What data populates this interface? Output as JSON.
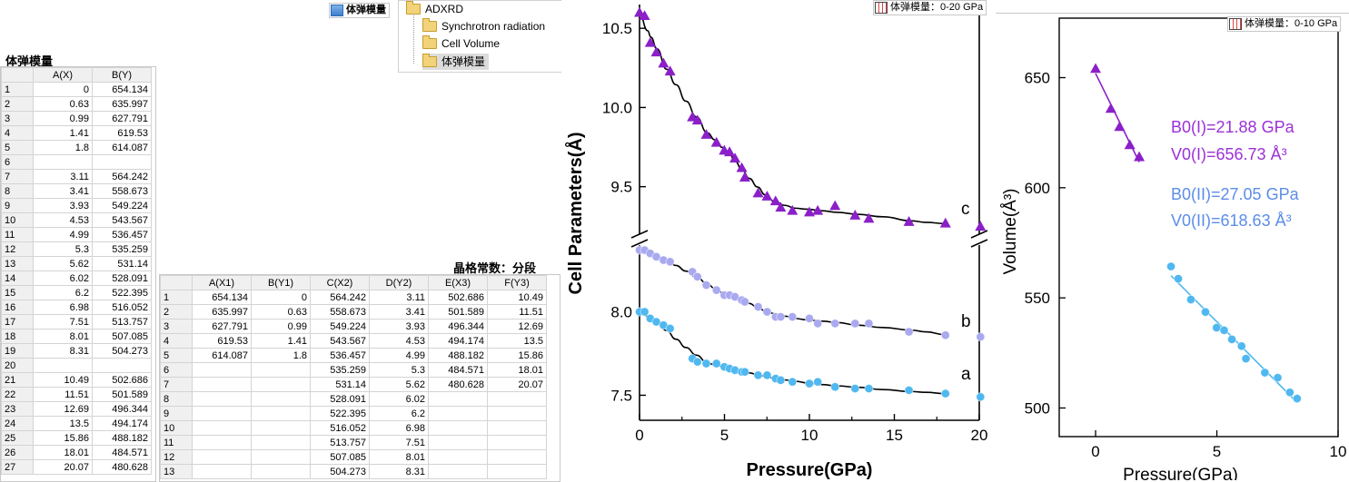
{
  "project_tree": {
    "root": "ADXRD",
    "children": [
      "Synchrotron radiation",
      "Cell Volume",
      "体弹模量"
    ]
  },
  "active_book_tab": "体弹模量",
  "sheet1": {
    "title": "体弹模量",
    "headers": [
      "A(X)",
      "B(Y)"
    ],
    "rows": [
      [
        "1",
        "0",
        "654.134"
      ],
      [
        "2",
        "0.63",
        "635.997"
      ],
      [
        "3",
        "0.99",
        "627.791"
      ],
      [
        "4",
        "1.41",
        "619.53"
      ],
      [
        "5",
        "1.8",
        "614.087"
      ],
      [
        "6",
        "",
        ""
      ],
      [
        "7",
        "3.11",
        "564.242"
      ],
      [
        "8",
        "3.41",
        "558.673"
      ],
      [
        "9",
        "3.93",
        "549.224"
      ],
      [
        "10",
        "4.53",
        "543.567"
      ],
      [
        "11",
        "4.99",
        "536.457"
      ],
      [
        "12",
        "5.3",
        "535.259"
      ],
      [
        "13",
        "5.62",
        "531.14"
      ],
      [
        "14",
        "6.02",
        "528.091"
      ],
      [
        "15",
        "6.2",
        "522.395"
      ],
      [
        "16",
        "6.98",
        "516.052"
      ],
      [
        "17",
        "7.51",
        "513.757"
      ],
      [
        "18",
        "8.01",
        "507.085"
      ],
      [
        "19",
        "8.31",
        "504.273"
      ],
      [
        "20",
        "",
        ""
      ],
      [
        "21",
        "10.49",
        "502.686"
      ],
      [
        "22",
        "11.51",
        "501.589"
      ],
      [
        "23",
        "12.69",
        "496.344"
      ],
      [
        "24",
        "13.5",
        "494.174"
      ],
      [
        "25",
        "15.86",
        "488.182"
      ],
      [
        "26",
        "18.01",
        "484.571"
      ],
      [
        "27",
        "20.07",
        "480.628"
      ]
    ]
  },
  "sheet2": {
    "title": "晶格常数：分段",
    "headers": [
      "A(X1)",
      "B(Y1)",
      "C(X2)",
      "D(Y2)",
      "E(X3)",
      "F(Y3)"
    ],
    "rows": [
      [
        "1",
        "654.134",
        "0",
        "564.242",
        "3.11",
        "502.686",
        "10.49"
      ],
      [
        "2",
        "635.997",
        "0.63",
        "558.673",
        "3.41",
        "501.589",
        "11.51"
      ],
      [
        "3",
        "627.791",
        "0.99",
        "549.224",
        "3.93",
        "496.344",
        "12.69"
      ],
      [
        "4",
        "619.53",
        "1.41",
        "543.567",
        "4.53",
        "494.174",
        "13.5"
      ],
      [
        "5",
        "614.087",
        "1.8",
        "536.457",
        "4.99",
        "488.182",
        "15.86"
      ],
      [
        "6",
        "",
        "",
        "535.259",
        "5.3",
        "484.571",
        "18.01"
      ],
      [
        "7",
        "",
        "",
        "531.14",
        "5.62",
        "480.628",
        "20.07"
      ],
      [
        "8",
        "",
        "",
        "528.091",
        "6.02",
        "",
        ""
      ],
      [
        "9",
        "",
        "",
        "522.395",
        "6.2",
        "",
        ""
      ],
      [
        "10",
        "",
        "",
        "516.052",
        "6.98",
        "",
        ""
      ],
      [
        "11",
        "",
        "",
        "513.757",
        "7.51",
        "",
        ""
      ],
      [
        "12",
        "",
        "",
        "507.085",
        "8.01",
        "",
        ""
      ],
      [
        "13",
        "",
        "",
        "504.273",
        "8.31",
        "",
        ""
      ]
    ]
  },
  "graph1_tab": "体弹模量：0-20 GPa",
  "graph2_tab": "体弹模量：0-10 GPa",
  "colors": {
    "purple": "#8b1fc8",
    "lavender": "#a9a9f0",
    "sky": "#4fb8f0",
    "bluetext": "#5b8de8",
    "purpletext": "#9b30d8"
  },
  "chart_data": [
    {
      "type": "scatter",
      "xlabel": "Pressure(GPa)",
      "ylabel": "Cell Parameters(Å)",
      "xlim": [
        0,
        20
      ],
      "x_ticks": [
        "0",
        "5",
        "10",
        "15",
        "20"
      ],
      "y_ticks_upper": [
        "9.5",
        "10.0",
        "10.5"
      ],
      "y_ticks_lower": [
        "7.5",
        "8.0"
      ],
      "axis_break": true,
      "series": [
        {
          "name": "c",
          "marker": "triangle",
          "color": "#8b1fc8",
          "x": [
            0,
            0.3,
            0.63,
            0.99,
            1.41,
            1.8,
            3.11,
            3.41,
            3.93,
            4.53,
            4.99,
            5.3,
            5.62,
            6.02,
            6.2,
            6.98,
            7.51,
            8.01,
            8.31,
            9.0,
            10.0,
            10.49,
            11.51,
            12.69,
            13.5,
            15.86,
            18.01,
            20.07
          ],
          "y": [
            10.6,
            10.58,
            10.41,
            10.35,
            10.28,
            10.23,
            9.94,
            9.92,
            9.83,
            9.78,
            9.73,
            9.72,
            9.68,
            9.62,
            9.56,
            9.46,
            9.44,
            9.41,
            9.37,
            9.35,
            9.34,
            9.35,
            9.38,
            9.32,
            9.3,
            9.28,
            9.27,
            9.25
          ]
        },
        {
          "name": "b",
          "marker": "circle",
          "color": "#a9a9f0",
          "x": [
            0,
            0.3,
            0.63,
            0.99,
            1.41,
            1.8,
            3.11,
            3.41,
            3.93,
            4.53,
            4.99,
            5.3,
            5.62,
            6.02,
            6.2,
            6.98,
            7.51,
            8.01,
            8.31,
            9.0,
            10.0,
            10.49,
            11.51,
            12.69,
            13.5,
            15.86,
            18.01,
            20.07
          ],
          "y": [
            8.37,
            8.37,
            8.35,
            8.33,
            8.31,
            8.3,
            8.24,
            8.21,
            8.16,
            8.13,
            8.1,
            8.1,
            8.09,
            8.07,
            8.06,
            8.03,
            8.0,
            7.97,
            7.97,
            7.97,
            7.96,
            7.93,
            7.93,
            7.93,
            7.93,
            7.88,
            7.86,
            7.85
          ]
        },
        {
          "name": "a",
          "marker": "circle",
          "color": "#4fb8f0",
          "x": [
            0,
            0.3,
            0.63,
            0.99,
            1.41,
            1.8,
            3.11,
            3.41,
            3.93,
            4.53,
            4.99,
            5.3,
            5.62,
            6.02,
            6.2,
            6.98,
            7.51,
            8.01,
            8.31,
            9.0,
            10.0,
            10.49,
            11.51,
            12.69,
            13.5,
            15.86,
            18.01,
            20.07
          ],
          "y": [
            8.0,
            8.0,
            7.96,
            7.94,
            7.92,
            7.9,
            7.72,
            7.7,
            7.69,
            7.69,
            7.67,
            7.66,
            7.65,
            7.64,
            7.64,
            7.62,
            7.62,
            7.6,
            7.59,
            7.58,
            7.57,
            7.58,
            7.55,
            7.54,
            7.54,
            7.53,
            7.51,
            7.49
          ]
        }
      ],
      "curve_labels": [
        "c",
        "b",
        "a"
      ]
    },
    {
      "type": "scatter",
      "xlabel": "Pressure(GPa)",
      "ylabel": "Volume(Å³)",
      "xlim": [
        -1.5,
        10
      ],
      "ylim": [
        487,
        677
      ],
      "x_ticks": [
        "0",
        "5",
        "10"
      ],
      "y_ticks": [
        "500",
        "550",
        "600",
        "650"
      ],
      "annotations": [
        "B0(I)=21.88 GPa",
        "V0(I)=656.73 Å³",
        "B0(II)=27.05 GPa",
        "V0(II)=618.63 Å³"
      ],
      "series": [
        {
          "name": "I",
          "marker": "triangle",
          "color": "#8b1fc8",
          "x": [
            0,
            0.63,
            0.99,
            1.41,
            1.8
          ],
          "y": [
            654.134,
            635.997,
            627.791,
            619.53,
            614.087
          ]
        },
        {
          "name": "II",
          "marker": "circle",
          "color": "#4fb8f0",
          "x": [
            3.11,
            3.41,
            3.93,
            4.53,
            4.99,
            5.3,
            5.62,
            6.02,
            6.2,
            6.98,
            7.51,
            8.01,
            8.31
          ],
          "y": [
            564.242,
            558.673,
            549.224,
            543.567,
            536.457,
            535.259,
            531.14,
            528.091,
            522.395,
            516.052,
            513.757,
            507.085,
            504.273
          ]
        }
      ]
    }
  ]
}
